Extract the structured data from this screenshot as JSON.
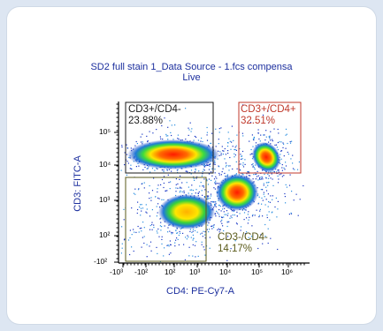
{
  "chart_data": {
    "type": "scatter",
    "title_line1": "SD2 full stain 1_Data Source - 1.fcs compensa",
    "title_line2": "Live",
    "xlabel": "CD4: PE-Cy7-A",
    "ylabel": "CD3: FITC-A",
    "x_scale": "biexponential",
    "y_scale": "biexponential",
    "x_ticks": [
      "-10³",
      "-10²",
      "10²",
      "10³",
      "10⁴",
      "10⁵",
      "10⁶"
    ],
    "y_ticks": [
      "10⁵",
      "10⁴",
      "10³",
      "10²",
      "-10²"
    ],
    "gates": [
      {
        "name": "CD3+/CD4-",
        "percent": "23.88%",
        "color": "#1a1a1a"
      },
      {
        "name": "CD3+/CD4+",
        "percent": "32.51%",
        "color": "#c0392b"
      },
      {
        "name": "CD3-/CD4-",
        "percent": "14.17%",
        "color": "#5a5a1a"
      }
    ],
    "populations": [
      {
        "name": "CD3+/CD4-",
        "cd4": 500,
        "cd3": 10000
      },
      {
        "name": "CD3+/CD4+",
        "cd4": 100000,
        "cd3": 15000
      },
      {
        "name": "CD3-/CD4-",
        "cd4": 1000,
        "cd3": 300
      },
      {
        "name": "CD3-/CD4+",
        "cd4": 20000,
        "cd3": 1000
      }
    ]
  }
}
